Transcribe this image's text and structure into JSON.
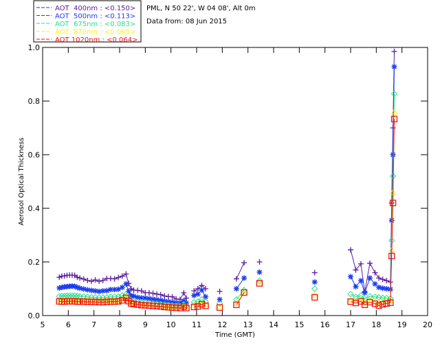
{
  "header": {
    "location": "PML, N 50 22', W 04 08', Alt 0m",
    "date_line": "Data from: 08 Jun 2015"
  },
  "chart_data": {
    "type": "line",
    "title": "",
    "xlabel": "Time (GMT)",
    "ylabel": "Aerosol Optical Thickness",
    "xlim": [
      5,
      20
    ],
    "ylim": [
      0.0,
      1.0
    ],
    "xticks": [
      "5",
      "6",
      "7",
      "8",
      "9",
      "10",
      "11",
      "12",
      "13",
      "14",
      "15",
      "16",
      "17",
      "18",
      "19",
      "20"
    ],
    "yticks": [
      "0.0",
      "0.2",
      "0.4",
      "0.6",
      "0.8",
      "1.0"
    ],
    "grid": false,
    "legend_position": "top-left",
    "x": [
      5.65,
      5.75,
      5.85,
      5.95,
      6.05,
      6.15,
      6.25,
      6.35,
      6.45,
      6.6,
      6.75,
      6.9,
      7.05,
      7.2,
      7.35,
      7.5,
      7.65,
      7.8,
      7.95,
      8.1,
      8.25,
      8.35,
      8.45,
      8.55,
      8.7,
      8.85,
      9.0,
      9.15,
      9.3,
      9.45,
      9.6,
      9.75,
      9.9,
      10.05,
      10.2,
      10.35,
      10.5,
      10.6,
      10.9,
      11.05,
      11.2,
      11.35,
      11.9,
      12.55,
      12.85,
      13.45,
      15.6,
      17.0,
      17.2,
      17.4,
      17.55,
      17.75,
      17.95,
      18.1,
      18.25,
      18.4,
      18.55,
      18.6,
      18.65,
      18.7
    ],
    "series": [
      {
        "name": "AOT  400nm : <0.150>",
        "color": "#5a1a9e",
        "marker": "plus",
        "values": [
          0.143,
          0.147,
          0.148,
          0.15,
          0.151,
          0.151,
          0.15,
          0.143,
          0.14,
          0.136,
          0.131,
          0.128,
          0.133,
          0.128,
          0.131,
          0.138,
          0.138,
          0.137,
          0.142,
          0.147,
          0.155,
          0.12,
          0.1,
          0.095,
          0.094,
          0.092,
          0.085,
          0.085,
          0.083,
          0.08,
          0.078,
          0.073,
          0.071,
          0.07,
          0.062,
          0.06,
          0.085,
          0.065,
          0.092,
          0.1,
          0.112,
          0.1,
          0.09,
          0.137,
          0.197,
          0.2,
          0.16,
          0.245,
          0.17,
          0.193,
          0.088,
          0.195,
          0.16,
          0.14,
          0.135,
          0.13,
          0.125,
          0.42,
          0.7,
          0.985
        ]
      },
      {
        "name": "AOT  500nm : <0.113>",
        "color": "#1a3cf0",
        "marker": "asterisk",
        "values": [
          0.103,
          0.105,
          0.107,
          0.108,
          0.109,
          0.11,
          0.109,
          0.105,
          0.102,
          0.099,
          0.096,
          0.094,
          0.092,
          0.09,
          0.092,
          0.093,
          0.097,
          0.097,
          0.098,
          0.105,
          0.118,
          0.09,
          0.074,
          0.072,
          0.068,
          0.066,
          0.065,
          0.063,
          0.061,
          0.059,
          0.057,
          0.054,
          0.052,
          0.05,
          0.048,
          0.047,
          0.055,
          0.047,
          0.075,
          0.08,
          0.095,
          0.07,
          0.06,
          0.1,
          0.14,
          0.162,
          0.125,
          0.145,
          0.108,
          0.13,
          0.085,
          0.14,
          0.118,
          0.105,
          0.102,
          0.1,
          0.098,
          0.355,
          0.6,
          0.928
        ]
      },
      {
        "name": "AOT  675nm : <0.083>",
        "color": "#22e08a",
        "marker": "diamond",
        "values": [
          0.072,
          0.073,
          0.073,
          0.074,
          0.074,
          0.074,
          0.074,
          0.073,
          0.072,
          0.071,
          0.07,
          0.068,
          0.068,
          0.067,
          0.067,
          0.068,
          0.07,
          0.07,
          0.071,
          0.075,
          0.08,
          0.065,
          0.055,
          0.053,
          0.051,
          0.049,
          0.048,
          0.047,
          0.046,
          0.045,
          0.043,
          0.041,
          0.04,
          0.038,
          0.037,
          0.036,
          0.042,
          0.036,
          0.05,
          0.052,
          0.06,
          0.052,
          0.045,
          0.06,
          0.095,
          0.13,
          0.1,
          0.08,
          0.07,
          0.075,
          0.062,
          0.072,
          0.07,
          0.068,
          0.066,
          0.065,
          0.064,
          0.28,
          0.52,
          0.827
        ]
      },
      {
        "name": "AOT  870nm : <0.069>",
        "color": "#f5f51a",
        "marker": "triangle",
        "values": [
          0.058,
          0.057,
          0.057,
          0.058,
          0.058,
          0.058,
          0.058,
          0.057,
          0.057,
          0.056,
          0.056,
          0.055,
          0.055,
          0.054,
          0.054,
          0.055,
          0.056,
          0.056,
          0.057,
          0.061,
          0.068,
          0.057,
          0.048,
          0.046,
          0.044,
          0.042,
          0.041,
          0.04,
          0.039,
          0.038,
          0.037,
          0.035,
          0.034,
          0.033,
          0.032,
          0.031,
          0.037,
          0.031,
          0.038,
          0.04,
          0.048,
          0.042,
          0.034,
          0.045,
          0.09,
          0.125,
          0.075,
          0.058,
          0.053,
          0.058,
          0.048,
          0.057,
          0.052,
          0.05,
          0.052,
          0.054,
          0.055,
          0.245,
          0.46,
          0.76
        ]
      },
      {
        "name": "AOT 1020nm : <0.064>",
        "color": "#ee1111",
        "marker": "square",
        "values": [
          0.053,
          0.052,
          0.052,
          0.053,
          0.053,
          0.053,
          0.053,
          0.052,
          0.052,
          0.052,
          0.051,
          0.051,
          0.051,
          0.05,
          0.05,
          0.051,
          0.052,
          0.052,
          0.053,
          0.057,
          0.066,
          0.054,
          0.045,
          0.043,
          0.041,
          0.039,
          0.038,
          0.037,
          0.036,
          0.035,
          0.034,
          0.032,
          0.031,
          0.03,
          0.029,
          0.028,
          0.034,
          0.028,
          0.032,
          0.034,
          0.042,
          0.036,
          0.03,
          0.04,
          0.086,
          0.12,
          0.068,
          0.052,
          0.047,
          0.053,
          0.04,
          0.05,
          0.044,
          0.037,
          0.042,
          0.045,
          0.048,
          0.222,
          0.42,
          0.733
        ]
      }
    ]
  }
}
